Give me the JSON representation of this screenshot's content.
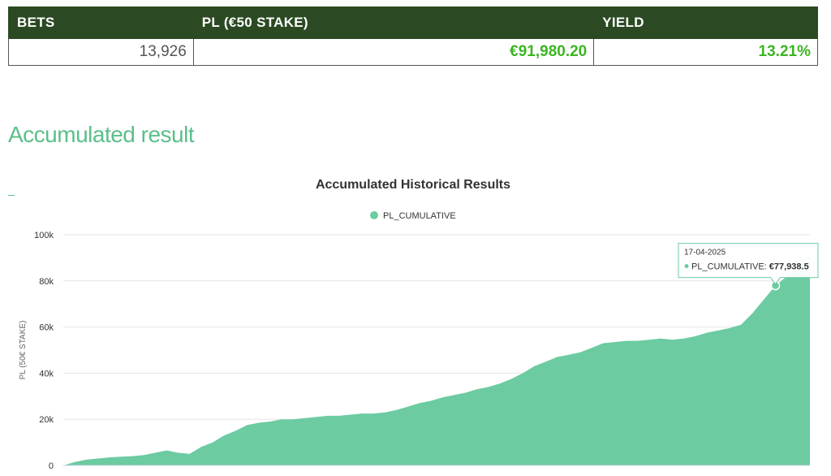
{
  "stats": {
    "headers": {
      "bets": "BETS",
      "pl": "PL (€50 STAKE)",
      "yield": "YIELD"
    },
    "values": {
      "bets": "13,926",
      "pl": "€91,980.20",
      "yield": "13.21%"
    },
    "colors": {
      "header_bg": "#2b4a23",
      "positive": "#3cb521"
    }
  },
  "section": {
    "title": "Accumulated result"
  },
  "chart_data": {
    "type": "area",
    "title": "Accumulated Historical Results",
    "ylabel": "PL (50€ STAKE)",
    "xlabel": "",
    "ylim": [
      0,
      100000
    ],
    "y_ticks": [
      0,
      20000,
      40000,
      60000,
      80000,
      100000
    ],
    "y_tick_labels": [
      "0",
      "20k",
      "40k",
      "60k",
      "80k",
      "100k"
    ],
    "legend": {
      "position": "top-center"
    },
    "grid": true,
    "color": "#6ccba1",
    "series": [
      {
        "name": "PL_CUMULATIVE",
        "values": [
          0,
          1500,
          2500,
          3000,
          3500,
          3800,
          4000,
          4500,
          5500,
          6500,
          5500,
          5000,
          8000,
          10000,
          13000,
          15000,
          17500,
          18500,
          19000,
          20000,
          20000,
          20500,
          21000,
          21500,
          21500,
          22000,
          22500,
          22500,
          23000,
          24000,
          25500,
          27000,
          28000,
          29500,
          30500,
          31500,
          33000,
          34000,
          35500,
          37500,
          40000,
          43000,
          45000,
          47000,
          48000,
          49000,
          51000,
          53000,
          53500,
          54000,
          54000,
          54500,
          55000,
          54500,
          55000,
          56000,
          57500,
          58500,
          59500,
          61000,
          66000,
          72000,
          77938.5,
          82000,
          85500,
          91980.2
        ]
      }
    ],
    "tooltip": {
      "date": "17-04-2025",
      "series": "PL_CUMULATIVE",
      "value": "€77,938.5",
      "index": 62
    }
  }
}
